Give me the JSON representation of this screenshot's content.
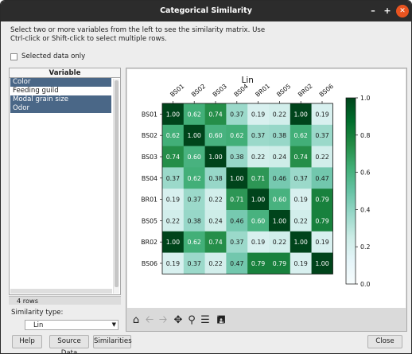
{
  "window": {
    "title": "Categorical Similarity",
    "minimize_glyph": "–",
    "maximize_glyph": "+",
    "close_glyph": "✕"
  },
  "instructions": {
    "line1": "Select two or more variables from the left to see the similarity matrix.  Use",
    "line2": "Ctrl-click or Shift-click to select multiple rows."
  },
  "selected_only": {
    "label": "Selected data only",
    "checked": false
  },
  "variables": {
    "header": "Variable",
    "items": [
      {
        "label": "Color",
        "selected": true
      },
      {
        "label": "Feeding guild",
        "selected": false
      },
      {
        "label": "Modal grain size",
        "selected": true
      },
      {
        "label": "Odor",
        "selected": true
      }
    ],
    "row_count": "4 rows"
  },
  "similarity": {
    "label": "Similarity type:",
    "selected": "Lin"
  },
  "toolbar": {
    "icons": [
      "home-icon",
      "back-arrow-icon",
      "forward-arrow-icon",
      "pan-icon",
      "zoom-icon",
      "configure-subplots-icon",
      "save-icon"
    ]
  },
  "buttons": {
    "help": "Help",
    "source_data": "Source Data",
    "similarities": "Similarities",
    "close": "Close"
  },
  "chart_data": {
    "type": "heatmap",
    "title": "Lin",
    "labels": [
      "BS01",
      "BS02",
      "BS03",
      "BS04",
      "BR01",
      "BS05",
      "BR02",
      "BS06"
    ],
    "matrix": [
      [
        1.0,
        0.62,
        0.74,
        0.37,
        0.19,
        0.22,
        1.0,
        0.19
      ],
      [
        0.62,
        1.0,
        0.6,
        0.62,
        0.37,
        0.38,
        0.62,
        0.37
      ],
      [
        0.74,
        0.6,
        1.0,
        0.38,
        0.22,
        0.24,
        0.74,
        0.22
      ],
      [
        0.37,
        0.62,
        0.38,
        1.0,
        0.71,
        0.46,
        0.37,
        0.47
      ],
      [
        0.19,
        0.37,
        0.22,
        0.71,
        1.0,
        0.6,
        0.19,
        0.79
      ],
      [
        0.22,
        0.38,
        0.24,
        0.46,
        0.6,
        1.0,
        0.22,
        0.79
      ],
      [
        1.0,
        0.62,
        0.74,
        0.37,
        0.19,
        0.22,
        1.0,
        0.19
      ],
      [
        0.19,
        0.37,
        0.22,
        0.47,
        0.79,
        0.79,
        0.19,
        1.0
      ]
    ],
    "colormap": "BuGn",
    "value_range": [
      0.0,
      1.0
    ],
    "colorbar_ticks": [
      "0.0",
      "0.2",
      "0.4",
      "0.6",
      "0.8",
      "1.0"
    ]
  }
}
